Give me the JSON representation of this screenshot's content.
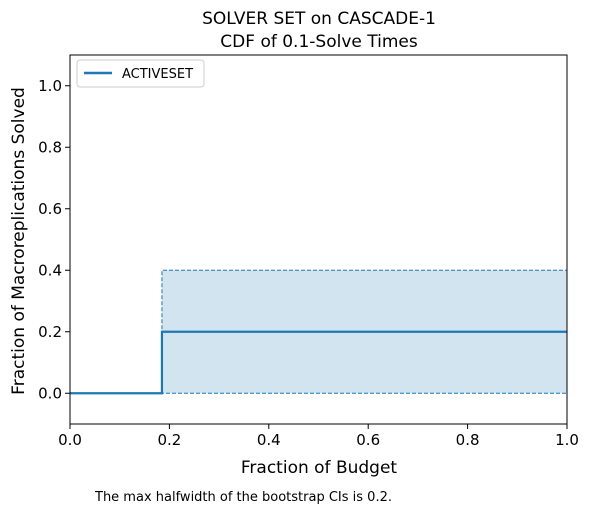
{
  "chart_data": {
    "type": "line",
    "title": [
      "SOLVER SET on CASCADE-1",
      "CDF of 0.1-Solve Times"
    ],
    "xlabel": "Fraction of Budget",
    "ylabel": "Fraction of Macroreplications Solved",
    "xlim": [
      0.0,
      1.0
    ],
    "ylim": [
      -0.1,
      1.1
    ],
    "xticks": [
      0.0,
      0.2,
      0.4,
      0.6,
      0.8,
      1.0
    ],
    "xtick_labels": [
      "0.0",
      "0.2",
      "0.4",
      "0.6",
      "0.8",
      "1.0"
    ],
    "yticks": [
      0.0,
      0.2,
      0.4,
      0.6,
      0.8,
      1.0
    ],
    "ytick_labels": [
      "0.0",
      "0.2",
      "0.4",
      "0.6",
      "0.8",
      "1.0"
    ],
    "grid": false,
    "legend": "top-left",
    "series": [
      {
        "name": "ACTIVESET",
        "color": "#1f77b4",
        "step": true,
        "x": [
          0.0,
          0.185,
          0.185,
          1.0
        ],
        "y": [
          0.0,
          0.0,
          0.2,
          0.2
        ],
        "ci_lower": {
          "x": [
            0.0,
            0.185,
            0.185,
            1.0
          ],
          "y": [
            0.0,
            0.0,
            0.0,
            0.0
          ]
        },
        "ci_upper": {
          "x": [
            0.0,
            0.185,
            0.185,
            1.0
          ],
          "y": [
            0.0,
            0.0,
            0.4,
            0.4
          ]
        }
      }
    ],
    "ci_fill_color": "#1f77b4",
    "annotation": "The max halfwidth of the bootstrap CIs is 0.2."
  }
}
